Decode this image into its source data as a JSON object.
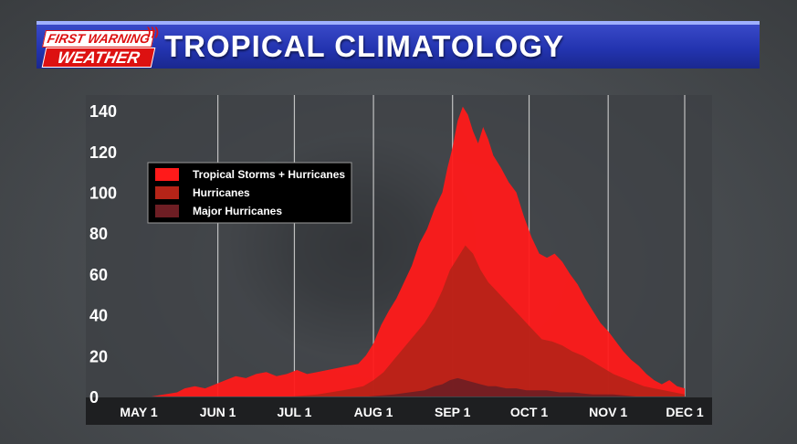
{
  "header": {
    "logo_line1": "FIRST WARNING",
    "logo_line2": "WEATHER",
    "title": "TROPICAL CLIMATOLOGY"
  },
  "colors": {
    "header_blue": "#2334b0",
    "tropical_storms_hurricanes": "#ff1a1a",
    "hurricanes": "#b52418",
    "major_hurricanes": "#6e1e24",
    "plot_bg": "#3d4044",
    "axis_bar": "#1e1f21"
  },
  "chart_data": {
    "type": "area",
    "title": "",
    "xlabel": "",
    "ylabel": "",
    "x_ticks": [
      {
        "label": "MAY 1",
        "day": 0
      },
      {
        "label": "JUN 1",
        "day": 31
      },
      {
        "label": "JUL 1",
        "day": 61
      },
      {
        "label": "AUG 1",
        "day": 92
      },
      {
        "label": "SEP 1",
        "day": 123
      },
      {
        "label": "OCT 1",
        "day": 153
      },
      {
        "label": "NOV 1",
        "day": 184
      },
      {
        "label": "DEC 1",
        "day": 214
      }
    ],
    "xlim": [
      0,
      214
    ],
    "y_ticks": [
      0,
      20,
      40,
      60,
      80,
      100,
      120,
      140
    ],
    "ylim": [
      0,
      145
    ],
    "grid": "vertical",
    "legend_position": "top-left",
    "series": [
      {
        "name": "Tropical Storms + Hurricanes",
        "color": "#ff1a1a",
        "points": [
          [
            5,
            0
          ],
          [
            10,
            1
          ],
          [
            15,
            2
          ],
          [
            18,
            4
          ],
          [
            22,
            5
          ],
          [
            26,
            4
          ],
          [
            30,
            6
          ],
          [
            34,
            8
          ],
          [
            38,
            10
          ],
          [
            42,
            9
          ],
          [
            46,
            11
          ],
          [
            50,
            12
          ],
          [
            54,
            10
          ],
          [
            58,
            11
          ],
          [
            62,
            13
          ],
          [
            66,
            11
          ],
          [
            70,
            12
          ],
          [
            74,
            13
          ],
          [
            78,
            14
          ],
          [
            82,
            15
          ],
          [
            86,
            16
          ],
          [
            89,
            20
          ],
          [
            92,
            26
          ],
          [
            95,
            35
          ],
          [
            98,
            42
          ],
          [
            101,
            48
          ],
          [
            104,
            56
          ],
          [
            107,
            64
          ],
          [
            110,
            75
          ],
          [
            113,
            82
          ],
          [
            116,
            92
          ],
          [
            119,
            100
          ],
          [
            121,
            112
          ],
          [
            123,
            122
          ],
          [
            125,
            135
          ],
          [
            127,
            142
          ],
          [
            129,
            138
          ],
          [
            131,
            130
          ],
          [
            133,
            124
          ],
          [
            135,
            132
          ],
          [
            137,
            126
          ],
          [
            139,
            118
          ],
          [
            142,
            112
          ],
          [
            145,
            105
          ],
          [
            148,
            100
          ],
          [
            151,
            88
          ],
          [
            154,
            78
          ],
          [
            157,
            70
          ],
          [
            160,
            68
          ],
          [
            163,
            70
          ],
          [
            166,
            66
          ],
          [
            169,
            60
          ],
          [
            172,
            55
          ],
          [
            175,
            48
          ],
          [
            178,
            42
          ],
          [
            181,
            36
          ],
          [
            184,
            32
          ],
          [
            187,
            27
          ],
          [
            190,
            22
          ],
          [
            193,
            18
          ],
          [
            196,
            15
          ],
          [
            199,
            11
          ],
          [
            202,
            8
          ],
          [
            205,
            6
          ],
          [
            208,
            8
          ],
          [
            211,
            5
          ],
          [
            214,
            4
          ]
        ]
      },
      {
        "name": "Hurricanes",
        "color": "#b52418",
        "points": [
          [
            60,
            0
          ],
          [
            70,
            1
          ],
          [
            80,
            3
          ],
          [
            88,
            5
          ],
          [
            92,
            8
          ],
          [
            96,
            12
          ],
          [
            100,
            18
          ],
          [
            104,
            24
          ],
          [
            108,
            30
          ],
          [
            112,
            36
          ],
          [
            116,
            44
          ],
          [
            119,
            52
          ],
          [
            122,
            62
          ],
          [
            125,
            68
          ],
          [
            128,
            74
          ],
          [
            131,
            70
          ],
          [
            134,
            62
          ],
          [
            137,
            56
          ],
          [
            140,
            52
          ],
          [
            143,
            48
          ],
          [
            146,
            44
          ],
          [
            149,
            40
          ],
          [
            152,
            36
          ],
          [
            155,
            32
          ],
          [
            158,
            28
          ],
          [
            162,
            27
          ],
          [
            166,
            25
          ],
          [
            170,
            22
          ],
          [
            174,
            20
          ],
          [
            178,
            17
          ],
          [
            182,
            14
          ],
          [
            186,
            11
          ],
          [
            190,
            9
          ],
          [
            194,
            7
          ],
          [
            198,
            5
          ],
          [
            202,
            4
          ],
          [
            206,
            3
          ],
          [
            210,
            2
          ],
          [
            214,
            1
          ]
        ]
      },
      {
        "name": "Major Hurricanes",
        "color": "#6e1e24",
        "points": [
          [
            90,
            0
          ],
          [
            100,
            1
          ],
          [
            106,
            2
          ],
          [
            112,
            3
          ],
          [
            116,
            5
          ],
          [
            119,
            6
          ],
          [
            122,
            8
          ],
          [
            125,
            9
          ],
          [
            128,
            8
          ],
          [
            131,
            7
          ],
          [
            134,
            6
          ],
          [
            137,
            5
          ],
          [
            140,
            5
          ],
          [
            144,
            4
          ],
          [
            148,
            4
          ],
          [
            152,
            3
          ],
          [
            156,
            3
          ],
          [
            160,
            3
          ],
          [
            165,
            2
          ],
          [
            170,
            2
          ],
          [
            178,
            1
          ],
          [
            186,
            1
          ],
          [
            195,
            0
          ]
        ]
      }
    ]
  }
}
